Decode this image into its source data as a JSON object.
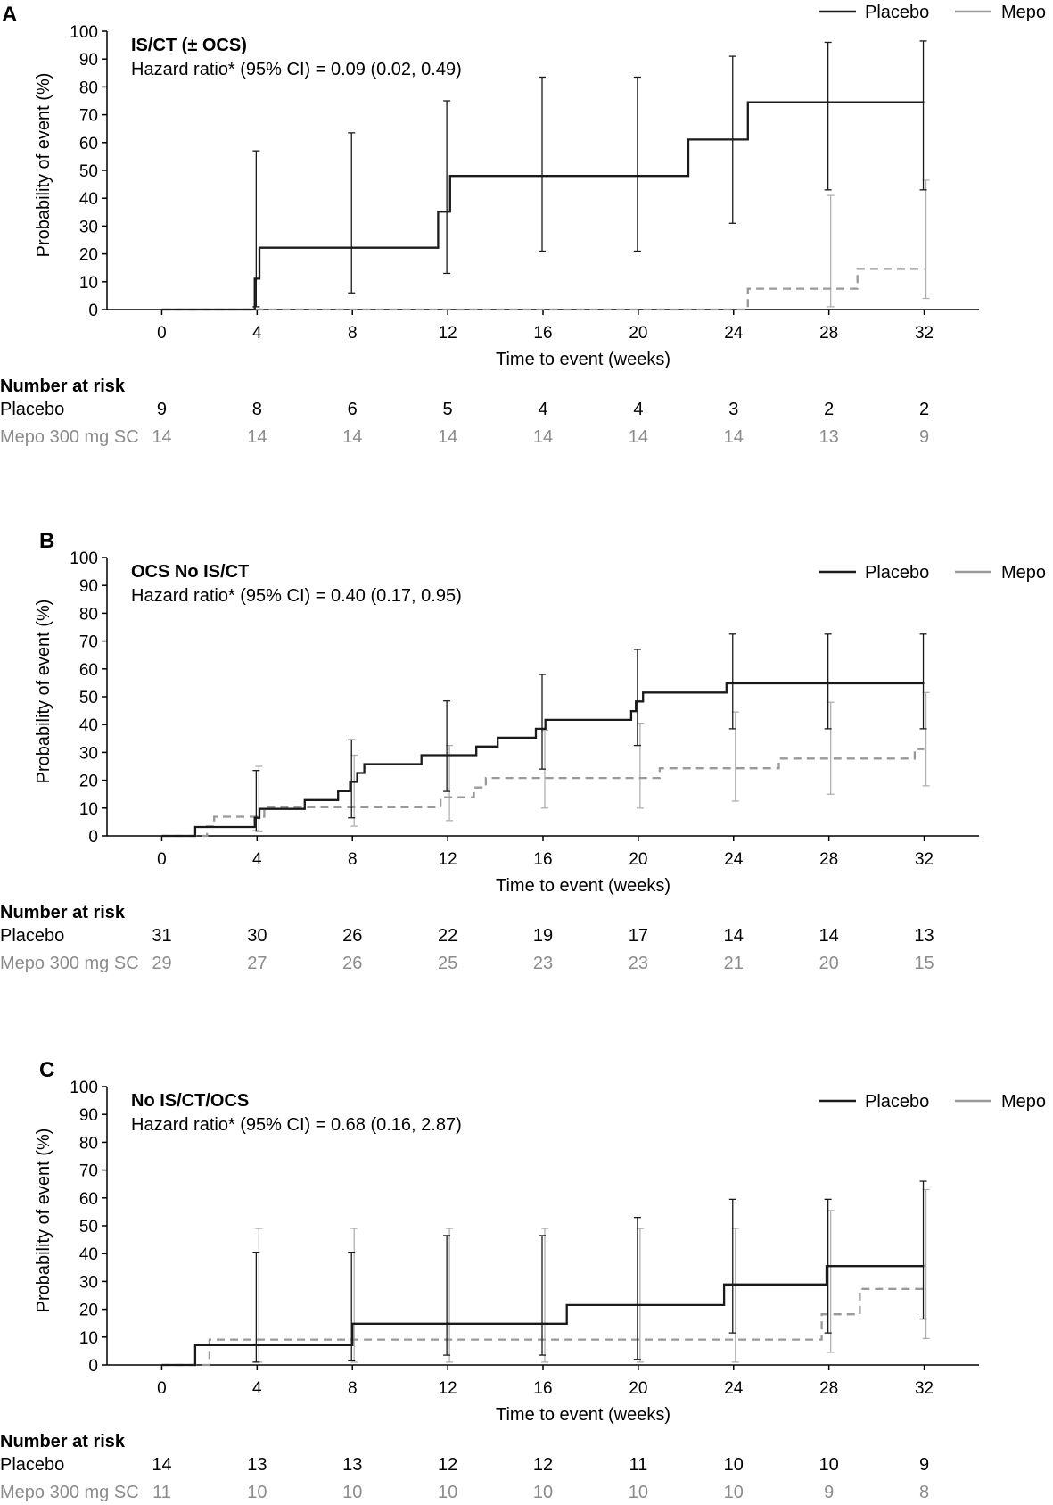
{
  "chart_data": [
    {
      "type": "line",
      "panel_label": "A",
      "title": "IS/CT (± OCS)",
      "subtitle": "Hazard ratio* (95% CI) = 0.09 (0.02, 0.49)",
      "xlabel": "Time to event (weeks)",
      "ylabel": "Probability of event (%)",
      "x_ticks": [
        "0",
        "4",
        "8",
        "12",
        "16",
        "20",
        "24",
        "28",
        "32"
      ],
      "y_ticks": [
        "0",
        "10",
        "20",
        "30",
        "40",
        "50",
        "60",
        "70",
        "80",
        "90",
        "100"
      ],
      "xlim": [
        -2.3,
        34.3
      ],
      "ylim": [
        0,
        100
      ],
      "legend_position": "top-right",
      "series": [
        {
          "name": "Placebo",
          "color": "#1a1a1a",
          "style": "solid",
          "steps": [
            [
              0,
              0
            ],
            [
              3.9,
              0
            ],
            [
              3.9,
              11.1
            ],
            [
              4.1,
              11.1
            ],
            [
              4.1,
              22.2
            ],
            [
              11.6,
              22.2
            ],
            [
              11.6,
              35.2
            ],
            [
              12.1,
              35.2
            ],
            [
              12.1,
              48
            ],
            [
              22.1,
              48
            ],
            [
              22.1,
              61.1
            ],
            [
              24.6,
              61.1
            ],
            [
              24.6,
              74.5
            ],
            [
              32,
              74.5
            ]
          ],
          "ci": [
            [
              4,
              1,
              57
            ],
            [
              8,
              6,
              63.5
            ],
            [
              12,
              13,
              75
            ],
            [
              16,
              21,
              83.5
            ],
            [
              20,
              21,
              83.5
            ],
            [
              24,
              31,
              91
            ],
            [
              28,
              43,
              96
            ],
            [
              32,
              43,
              96.5
            ]
          ]
        },
        {
          "name": "Mepo",
          "color": "#999999",
          "style": "dashed",
          "steps": [
            [
              0,
              0
            ],
            [
              24.6,
              0
            ],
            [
              24.6,
              7.5
            ],
            [
              29.2,
              7.5
            ],
            [
              29.2,
              14.6
            ],
            [
              32,
              14.6
            ]
          ],
          "ci": [
            [
              28,
              1,
              41
            ],
            [
              32,
              4,
              46.5
            ]
          ]
        }
      ],
      "number_at_risk": {
        "header": "Number at risk",
        "rows": [
          {
            "label": "Placebo",
            "values": [
              "9",
              "8",
              "6",
              "5",
              "4",
              "4",
              "3",
              "2",
              "2"
            ]
          },
          {
            "label": "Mepo 300 mg SC",
            "values": [
              "14",
              "14",
              "14",
              "14",
              "14",
              "14",
              "14",
              "13",
              "9"
            ]
          }
        ]
      }
    },
    {
      "type": "line",
      "panel_label": "B",
      "title": "OCS No IS/CT",
      "subtitle": "Hazard ratio* (95% CI) = 0.40 (0.17, 0.95)",
      "xlabel": "Time to event (weeks)",
      "ylabel": "Probability of event (%)",
      "x_ticks": [
        "0",
        "4",
        "8",
        "12",
        "16",
        "20",
        "24",
        "28",
        "32"
      ],
      "y_ticks": [
        "0",
        "10",
        "20",
        "30",
        "40",
        "50",
        "60",
        "70",
        "80",
        "90",
        "100"
      ],
      "xlim": [
        -2.3,
        34.3
      ],
      "ylim": [
        0,
        100
      ],
      "legend_position": "top-right",
      "series": [
        {
          "name": "Placebo",
          "color": "#1a1a1a",
          "style": "solid",
          "steps": [
            [
              0,
              0
            ],
            [
              1.4,
              0
            ],
            [
              1.4,
              3.2
            ],
            [
              3.9,
              3.2
            ],
            [
              3.9,
              6.5
            ],
            [
              4.1,
              6.5
            ],
            [
              4.1,
              9.7
            ],
            [
              6,
              9.7
            ],
            [
              6,
              12.9
            ],
            [
              7.4,
              12.9
            ],
            [
              7.4,
              16.1
            ],
            [
              7.9,
              16.1
            ],
            [
              7.9,
              19.4
            ],
            [
              8.2,
              19.4
            ],
            [
              8.2,
              22.6
            ],
            [
              8.5,
              22.6
            ],
            [
              8.5,
              25.8
            ],
            [
              10.9,
              25.8
            ],
            [
              10.9,
              29
            ],
            [
              12.4,
              29
            ],
            [
              12.4,
              29
            ],
            [
              13.2,
              29
            ],
            [
              13.2,
              32.1
            ],
            [
              14.1,
              32.1
            ],
            [
              14.1,
              35.3
            ],
            [
              15.7,
              35.3
            ],
            [
              15.7,
              38.5
            ],
            [
              16.1,
              38.5
            ],
            [
              16.1,
              41.7
            ],
            [
              19.7,
              41.7
            ],
            [
              19.7,
              44.8
            ],
            [
              19.9,
              44.8
            ],
            [
              19.9,
              48.3
            ],
            [
              20.2,
              48.3
            ],
            [
              20.2,
              51.5
            ],
            [
              23.7,
              51.5
            ],
            [
              23.7,
              54.8
            ],
            [
              32,
              54.8
            ]
          ],
          "ci": [
            [
              4,
              1.8,
              23.5
            ],
            [
              8,
              6.5,
              34.5
            ],
            [
              12,
              16,
              48.5
            ],
            [
              16,
              24,
              58
            ],
            [
              20,
              32.5,
              67
            ],
            [
              24,
              38.5,
              72.5
            ],
            [
              28,
              38.5,
              72.5
            ],
            [
              32,
              38.5,
              72.5
            ]
          ]
        },
        {
          "name": "Mepo",
          "color": "#999999",
          "style": "dashed",
          "steps": [
            [
              0,
              0
            ],
            [
              1.9,
              0
            ],
            [
              1.9,
              3.4
            ],
            [
              2.2,
              3.4
            ],
            [
              2.2,
              6.9
            ],
            [
              3.9,
              6.9
            ],
            [
              3.9,
              6.9
            ],
            [
              4.3,
              6.9
            ],
            [
              4.3,
              10.3
            ],
            [
              7.9,
              10.3
            ],
            [
              7.9,
              10.3
            ],
            [
              11.7,
              10.3
            ],
            [
              11.7,
              13.9
            ],
            [
              13.1,
              13.9
            ],
            [
              13.1,
              17.4
            ],
            [
              13.6,
              17.4
            ],
            [
              13.6,
              20.8
            ],
            [
              20.9,
              20.8
            ],
            [
              20.9,
              24.3
            ],
            [
              25.9,
              24.3
            ],
            [
              25.9,
              27.8
            ],
            [
              31.6,
              27.8
            ],
            [
              31.6,
              31.2
            ],
            [
              32,
              31.2
            ]
          ],
          "ci": [
            [
              4,
              1.5,
              25
            ],
            [
              8,
              3.5,
              29
            ],
            [
              12,
              5.5,
              32.5
            ],
            [
              16,
              10,
              38
            ],
            [
              20,
              10,
              40.5
            ],
            [
              24,
              12.5,
              44.5
            ],
            [
              28,
              15,
              48
            ],
            [
              32,
              18,
              51.5
            ]
          ]
        }
      ],
      "number_at_risk": {
        "header": "Number at risk",
        "rows": [
          {
            "label": "Placebo",
            "values": [
              "31",
              "30",
              "26",
              "22",
              "19",
              "17",
              "14",
              "14",
              "13"
            ]
          },
          {
            "label": "Mepo 300 mg SC",
            "values": [
              "29",
              "27",
              "26",
              "25",
              "23",
              "23",
              "21",
              "20",
              "15"
            ]
          }
        ]
      }
    },
    {
      "type": "line",
      "panel_label": "C",
      "title": "No IS/CT/OCS",
      "subtitle": "Hazard ratio* (95% CI) = 0.68 (0.16, 2.87)",
      "xlabel": "Time to event (weeks)",
      "ylabel": "Probability of event (%)",
      "x_ticks": [
        "0",
        "4",
        "8",
        "12",
        "16",
        "20",
        "24",
        "28",
        "32"
      ],
      "y_ticks": [
        "0",
        "10",
        "20",
        "30",
        "40",
        "50",
        "60",
        "70",
        "80",
        "90",
        "100"
      ],
      "xlim": [
        -2.3,
        34.3
      ],
      "ylim": [
        0,
        100
      ],
      "legend_position": "top-right",
      "series": [
        {
          "name": "Placebo",
          "color": "#1a1a1a",
          "style": "solid",
          "steps": [
            [
              0,
              0
            ],
            [
              1.4,
              0
            ],
            [
              1.4,
              7.1
            ],
            [
              8,
              7.1
            ],
            [
              8,
              14.8
            ],
            [
              17,
              14.8
            ],
            [
              17,
              21.5
            ],
            [
              23.6,
              21.5
            ],
            [
              23.6,
              28.9
            ],
            [
              27.9,
              28.9
            ],
            [
              27.9,
              35.5
            ],
            [
              32,
              35.5
            ]
          ],
          "ci": [
            [
              4,
              1,
              40.5
            ],
            [
              8,
              1.5,
              40.5
            ],
            [
              12,
              3.5,
              46.5
            ],
            [
              16,
              3.5,
              46.5
            ],
            [
              20,
              2,
              53
            ],
            [
              24,
              11.5,
              59.5
            ],
            [
              28,
              11.5,
              59.5
            ],
            [
              32,
              16.5,
              66
            ]
          ]
        },
        {
          "name": "Mepo",
          "color": "#999999",
          "style": "dashed",
          "steps": [
            [
              0,
              0
            ],
            [
              2,
              0
            ],
            [
              2,
              9.1
            ],
            [
              27.7,
              9.1
            ],
            [
              27.7,
              18.2
            ],
            [
              29.3,
              18.2
            ],
            [
              29.3,
              27.3
            ],
            [
              32,
              27.3
            ]
          ],
          "ci": [
            [
              4,
              1,
              49
            ],
            [
              8,
              1,
              49
            ],
            [
              12,
              1,
              49
            ],
            [
              16,
              1,
              49
            ],
            [
              20,
              1,
              49
            ],
            [
              24,
              1,
              49
            ],
            [
              28,
              4.5,
              55.5
            ],
            [
              32,
              9.5,
              63
            ]
          ]
        }
      ],
      "number_at_risk": {
        "header": "Number at risk",
        "rows": [
          {
            "label": "Placebo",
            "values": [
              "14",
              "13",
              "13",
              "12",
              "12",
              "11",
              "10",
              "10",
              "9"
            ]
          },
          {
            "label": "Mepo 300 mg SC",
            "values": [
              "11",
              "10",
              "10",
              "10",
              "10",
              "10",
              "10",
              "9",
              "8"
            ]
          }
        ]
      }
    }
  ]
}
